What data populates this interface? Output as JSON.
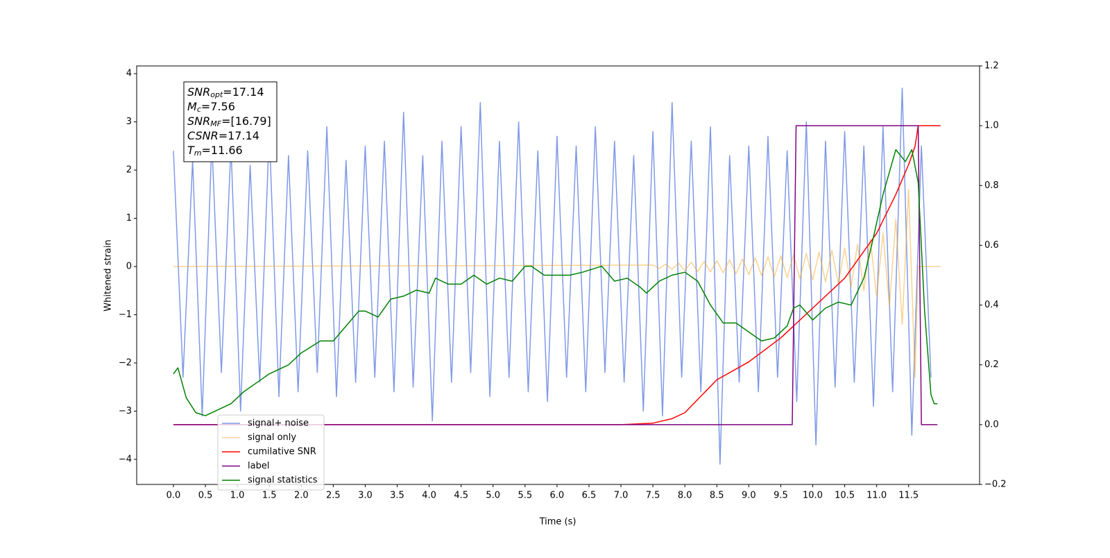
{
  "chart_data": {
    "type": "line",
    "xlabel": "Time (s)",
    "ylabel": "Whitened strain",
    "xlim": [
      -0.575,
      12.61
    ],
    "ylim": [
      -4.52,
      4.16
    ],
    "y2lim": [
      -0.2,
      1.2
    ],
    "grid": false,
    "legend_loc": "lower left",
    "xticks": [
      {
        "value": 0,
        "label": "0.0"
      },
      {
        "value": 0.5,
        "label": "0.5"
      },
      {
        "value": 1,
        "label": "1.0"
      },
      {
        "value": 1.5,
        "label": "1.5"
      },
      {
        "value": 2,
        "label": "2.0"
      },
      {
        "value": 2.5,
        "label": "2.5"
      },
      {
        "value": 3,
        "label": "3.0"
      },
      {
        "value": 3.5,
        "label": "3.5"
      },
      {
        "value": 4,
        "label": "4.0"
      },
      {
        "value": 4.5,
        "label": "4.5"
      },
      {
        "value": 5,
        "label": "5.0"
      },
      {
        "value": 5.5,
        "label": "5.5"
      },
      {
        "value": 6,
        "label": "6.0"
      },
      {
        "value": 6.5,
        "label": "6.5"
      },
      {
        "value": 7,
        "label": "7.0"
      },
      {
        "value": 7.5,
        "label": "7.5"
      },
      {
        "value": 8,
        "label": "8.0"
      },
      {
        "value": 8.5,
        "label": "8.5"
      },
      {
        "value": 9,
        "label": "9.0"
      },
      {
        "value": 9.5,
        "label": "9.5"
      },
      {
        "value": 10,
        "label": "10.0"
      },
      {
        "value": 10.5,
        "label": "10.5"
      },
      {
        "value": 11,
        "label": "11.0"
      },
      {
        "value": 11.5,
        "label": "11.5"
      }
    ],
    "yticks": [
      {
        "value": -4,
        "label": "−4"
      },
      {
        "value": -3,
        "label": "−3"
      },
      {
        "value": -2,
        "label": "−2"
      },
      {
        "value": -1,
        "label": "−1"
      },
      0,
      1,
      2,
      3,
      4
    ],
    "y2ticks": [
      {
        "value": -0.2,
        "label": "−0.2"
      },
      {
        "value": 0,
        "label": "0.0"
      },
      {
        "value": 0.2,
        "label": "0.2"
      },
      {
        "value": 0.4,
        "label": "0.4"
      },
      {
        "value": 0.6,
        "label": "0.6"
      },
      {
        "value": 0.8,
        "label": "0.8"
      },
      {
        "value": 1,
        "label": "1.0"
      },
      {
        "value": 1.2,
        "label": "1.2"
      }
    ],
    "annotation": [
      {
        "symbol": "SNR",
        "subscript": "opt",
        "text": "=17.14"
      },
      {
        "symbol": "M",
        "subscript": "c",
        "text": "=7.56"
      },
      {
        "symbol": "SNR",
        "subscript": "MF",
        "text": "=[16.79]"
      },
      {
        "symbol": "CSNR",
        "subscript": "",
        "text": "=17.14"
      },
      {
        "symbol": "T",
        "subscript": "m",
        "text": "=11.66"
      }
    ],
    "series": [
      {
        "name": "signal+ noise",
        "color": "#7893e6",
        "x": [
          0,
          0.15,
          0.3,
          0.45,
          0.6,
          0.75,
          0.9,
          1.05,
          1.2,
          1.35,
          1.5,
          1.65,
          1.8,
          1.95,
          2.1,
          2.25,
          2.4,
          2.55,
          2.7,
          2.85,
          3.0,
          3.15,
          3.3,
          3.45,
          3.6,
          3.75,
          3.9,
          4.05,
          4.2,
          4.35,
          4.5,
          4.65,
          4.8,
          4.95,
          5.1,
          5.25,
          5.4,
          5.55,
          5.7,
          5.85,
          6.0,
          6.15,
          6.3,
          6.45,
          6.6,
          6.75,
          6.9,
          7.05,
          7.2,
          7.35,
          7.5,
          7.65,
          7.8,
          7.95,
          8.1,
          8.25,
          8.4,
          8.55,
          8.7,
          8.85,
          9.0,
          9.15,
          9.3,
          9.45,
          9.6,
          9.75,
          9.9,
          10.05,
          10.2,
          10.35,
          10.5,
          10.65,
          10.8,
          10.95,
          11.1,
          11.25,
          11.4,
          11.55,
          11.7,
          11.85
        ],
        "values": [
          2.4,
          -2.3,
          2.2,
          -3.1,
          2.6,
          -2.2,
          2.5,
          -3.0,
          2.1,
          -2.4,
          2.8,
          -2.7,
          2.3,
          -2.6,
          2.4,
          -2.2,
          2.9,
          -2.7,
          2.2,
          -2.4,
          2.5,
          -2.3,
          2.6,
          -2.6,
          3.2,
          -2.5,
          2.3,
          -3.2,
          2.6,
          -2.4,
          2.9,
          -2.2,
          3.4,
          -2.7,
          2.6,
          -2.3,
          3.0,
          -2.6,
          2.4,
          -2.8,
          2.7,
          -2.3,
          2.5,
          -2.6,
          2.9,
          -2.2,
          2.6,
          -2.4,
          2.3,
          -3.0,
          2.8,
          -3.1,
          3.4,
          -2.3,
          2.6,
          -2.6,
          2.9,
          -4.1,
          2.3,
          -2.4,
          2.5,
          -2.6,
          2.7,
          -2.3,
          2.4,
          -2.8,
          3.0,
          -3.7,
          2.6,
          -2.5,
          2.8,
          -2.4,
          2.5,
          -2.9,
          2.9,
          -2.6,
          3.7,
          -3.5,
          2.5,
          -2.3
        ]
      },
      {
        "name": "signal only",
        "color": "#f5a623",
        "x": [
          0,
          7.5,
          7.6,
          7.7,
          7.8,
          7.9,
          8.0,
          8.1,
          8.2,
          8.3,
          8.4,
          8.5,
          8.6,
          8.7,
          8.8,
          8.9,
          9.0,
          9.1,
          9.2,
          9.3,
          9.4,
          9.5,
          9.6,
          9.7,
          9.8,
          9.9,
          10.0,
          10.1,
          10.2,
          10.3,
          10.4,
          10.5,
          10.6,
          10.7,
          10.8,
          10.9,
          11.0,
          11.1,
          11.2,
          11.3,
          11.4,
          11.5,
          11.6,
          11.65,
          12.0
        ],
        "values": [
          0,
          0.03,
          -0.04,
          0.05,
          -0.06,
          0.07,
          -0.08,
          0.09,
          -0.1,
          0.1,
          -0.11,
          0.12,
          -0.13,
          0.14,
          -0.15,
          0.16,
          -0.17,
          0.18,
          -0.19,
          0.2,
          -0.21,
          0.22,
          -0.23,
          0.24,
          -0.25,
          0.27,
          -0.28,
          0.3,
          -0.32,
          0.34,
          -0.36,
          0.38,
          -0.42,
          0.46,
          -0.5,
          0.56,
          -0.62,
          0.7,
          -0.82,
          0.98,
          -1.2,
          1.6,
          -2.3,
          0,
          0
        ]
      },
      {
        "name": "cumilative SNR",
        "color": "#ff0000",
        "axis": "y2",
        "x": [
          0,
          7.0,
          7.5,
          7.8,
          8.0,
          8.5,
          9.0,
          9.5,
          10.0,
          10.5,
          11.0,
          11.3,
          11.5,
          11.6,
          11.65,
          12.0
        ],
        "values": [
          0,
          0,
          0.005,
          0.02,
          0.04,
          0.15,
          0.21,
          0.29,
          0.39,
          0.49,
          0.64,
          0.77,
          0.87,
          0.93,
          1.0,
          1.0
        ]
      },
      {
        "name": "label",
        "color": "#800080",
        "axis": "y2",
        "x": [
          0,
          9.68,
          9.74,
          11.65,
          11.7,
          11.95
        ],
        "values": [
          0,
          0,
          1,
          1,
          0,
          0
        ]
      },
      {
        "name": "signal statistics",
        "color": "#008000",
        "axis": "y2",
        "x": [
          0.0,
          0.07,
          0.2,
          0.35,
          0.5,
          0.7,
          0.9,
          1.1,
          1.3,
          1.5,
          1.8,
          2.0,
          2.3,
          2.5,
          2.7,
          2.9,
          3.0,
          3.2,
          3.4,
          3.6,
          3.8,
          4.0,
          4.1,
          4.3,
          4.5,
          4.7,
          4.9,
          5.1,
          5.3,
          5.5,
          5.6,
          5.8,
          6.0,
          6.2,
          6.4,
          6.7,
          6.9,
          7.1,
          7.3,
          7.4,
          7.6,
          7.8,
          8.0,
          8.2,
          8.4,
          8.6,
          8.8,
          9.0,
          9.2,
          9.4,
          9.6,
          9.7,
          9.8,
          10.0,
          10.2,
          10.4,
          10.6,
          10.8,
          10.9,
          11.1,
          11.3,
          11.45,
          11.55,
          11.65,
          11.75,
          11.85,
          11.9,
          11.95
        ],
        "values": [
          0.17,
          0.19,
          0.09,
          0.04,
          0.03,
          0.05,
          0.07,
          0.11,
          0.14,
          0.17,
          0.2,
          0.24,
          0.28,
          0.28,
          0.33,
          0.38,
          0.38,
          0.36,
          0.42,
          0.43,
          0.45,
          0.44,
          0.49,
          0.47,
          0.47,
          0.5,
          0.47,
          0.49,
          0.48,
          0.53,
          0.53,
          0.5,
          0.5,
          0.5,
          0.51,
          0.53,
          0.48,
          0.49,
          0.46,
          0.44,
          0.48,
          0.5,
          0.51,
          0.48,
          0.4,
          0.34,
          0.34,
          0.31,
          0.28,
          0.29,
          0.33,
          0.39,
          0.4,
          0.35,
          0.39,
          0.41,
          0.4,
          0.49,
          0.58,
          0.77,
          0.92,
          0.88,
          0.92,
          0.81,
          0.38,
          0.1,
          0.07,
          0.07
        ]
      }
    ]
  }
}
